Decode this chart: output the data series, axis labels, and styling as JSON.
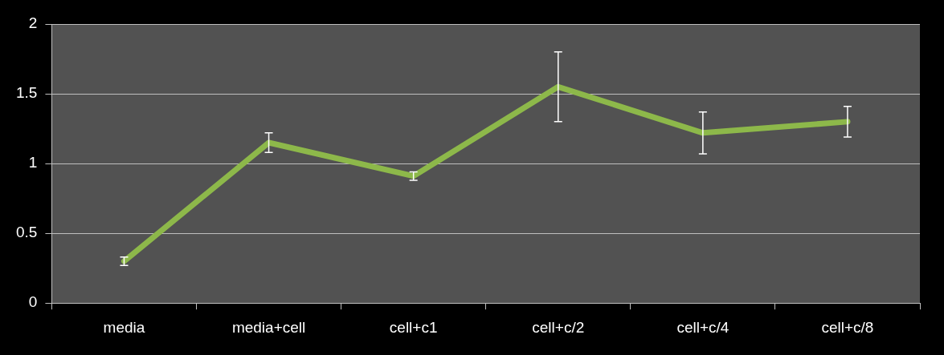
{
  "chart_data": {
    "type": "line",
    "categories": [
      "media",
      "media+cell",
      "cell+c1",
      "cell+c/2",
      "cell+c/4",
      "cell+c/8"
    ],
    "series": [
      {
        "color": "#8db84a",
        "values": [
          0.3,
          1.15,
          0.91,
          1.55,
          1.22,
          1.3
        ],
        "errors": [
          0.03,
          0.07,
          0.03,
          0.25,
          0.15,
          0.11
        ]
      }
    ],
    "ylim": [
      0,
      2
    ],
    "yticks": [
      0,
      0.5,
      1,
      1.5,
      2
    ],
    "grid": "y",
    "legend": false
  }
}
